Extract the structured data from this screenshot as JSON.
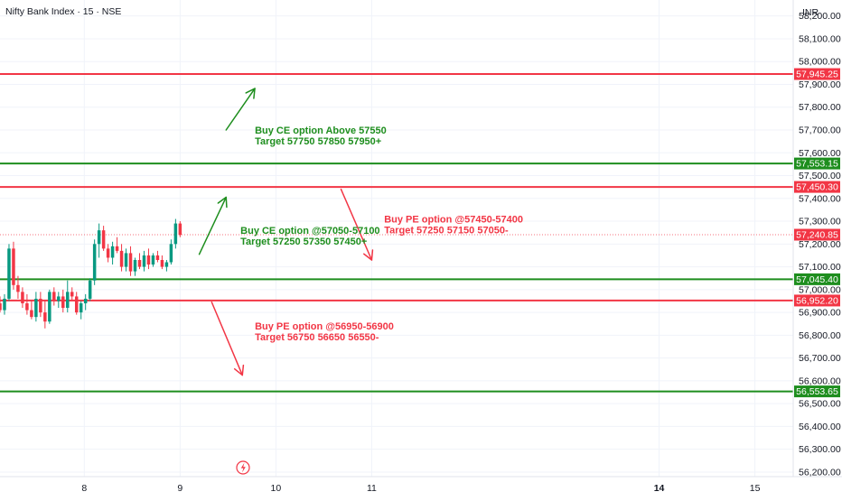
{
  "header": {
    "symbol": "Nifty Bank Index · 15 · NSE",
    "currency": "INR"
  },
  "chart_data": {
    "type": "candlestick",
    "y_axis": {
      "min": 56180,
      "max": 58270,
      "ticks": [
        56200,
        56300,
        56400,
        56500,
        56600,
        56700,
        56800,
        56900,
        57000,
        57100,
        57200,
        57300,
        57400,
        57500,
        57600,
        57700,
        57800,
        57900,
        58000,
        58100,
        58200
      ],
      "tick_labels": [
        "56,200.00",
        "56,300.00",
        "56,400.00",
        "56,500.00",
        "56,600.00",
        "56,700.00",
        "56,800.00",
        "56,900.00",
        "57,000.00",
        "57,100.00",
        "57,200.00",
        "57,300.00",
        "57,400.00",
        "57,500.00",
        "57,600.00",
        "57,700.00",
        "57,800.00",
        "57,900.00",
        "58,000.00",
        "58,100.00",
        "58,200.00"
      ]
    },
    "x_axis": {
      "min": 7.12,
      "max": 15.4,
      "ticks": [
        {
          "value": 8,
          "label": "8",
          "bold": false
        },
        {
          "value": 9,
          "label": "9",
          "bold": false
        },
        {
          "value": 10,
          "label": "10",
          "bold": false
        },
        {
          "value": 11,
          "label": "11",
          "bold": false
        },
        {
          "value": 14,
          "label": "14",
          "bold": true
        },
        {
          "value": 15,
          "label": "15",
          "bold": false
        }
      ]
    },
    "last_price": {
      "value": 57240.85,
      "label": "57,240.85"
    },
    "levels": [
      {
        "price": 57945.25,
        "label": "57,945.25",
        "color": "#f23645"
      },
      {
        "price": 57553.15,
        "label": "57,553.15",
        "color": "#1e8e1e"
      },
      {
        "price": 57450.3,
        "label": "57,450.30",
        "color": "#f23645"
      },
      {
        "price": 57045.4,
        "label": "57,045.40",
        "color": "#1e8e1e"
      },
      {
        "price": 56952.2,
        "label": "56,952.20",
        "color": "#f23645"
      },
      {
        "price": 56553.65,
        "label": "56,553.65",
        "color": "#1e8e1e"
      }
    ],
    "candles": [
      [
        56940,
        56970,
        56900,
        56910
      ],
      [
        56910,
        56980,
        56890,
        56960
      ],
      [
        56960,
        57200,
        56950,
        57180
      ],
      [
        57180,
        57210,
        57000,
        57020
      ],
      [
        57020,
        57060,
        56960,
        56990
      ],
      [
        56990,
        57010,
        56920,
        56940
      ],
      [
        56940,
        56980,
        56890,
        56910
      ],
      [
        56910,
        56950,
        56870,
        56880
      ],
      [
        56880,
        56990,
        56860,
        56960
      ],
      [
        56960,
        56990,
        56880,
        56900
      ],
      [
        56900,
        56950,
        56830,
        56860
      ],
      [
        56860,
        57000,
        56850,
        56990
      ],
      [
        56990,
        57010,
        56930,
        56950
      ],
      [
        56950,
        56990,
        56920,
        56970
      ],
      [
        56970,
        57000,
        56900,
        56920
      ],
      [
        56920,
        57040,
        56900,
        56990
      ],
      [
        56990,
        57010,
        56950,
        56970
      ],
      [
        56970,
        56990,
        56890,
        56900
      ],
      [
        56900,
        56950,
        56870,
        56940
      ],
      [
        56940,
        56980,
        56910,
        56960
      ],
      [
        56960,
        57050,
        56950,
        57040
      ],
      [
        57040,
        57220,
        57020,
        57200
      ],
      [
        57200,
        57290,
        57140,
        57260
      ],
      [
        57260,
        57280,
        57170,
        57180
      ],
      [
        57180,
        57200,
        57120,
        57140
      ],
      [
        57140,
        57210,
        57110,
        57190
      ],
      [
        57190,
        57230,
        57160,
        57170
      ],
      [
        57170,
        57200,
        57080,
        57100
      ],
      [
        57100,
        57180,
        57080,
        57160
      ],
      [
        57160,
        57190,
        57060,
        57080
      ],
      [
        57080,
        57140,
        57060,
        57130
      ],
      [
        57130,
        57160,
        57090,
        57100
      ],
      [
        57100,
        57170,
        57080,
        57150
      ],
      [
        57150,
        57180,
        57090,
        57110
      ],
      [
        57110,
        57160,
        57100,
        57150
      ],
      [
        57150,
        57170,
        57120,
        57130
      ],
      [
        57130,
        57150,
        57090,
        57100
      ],
      [
        57100,
        57130,
        57080,
        57120
      ],
      [
        57120,
        57220,
        57110,
        57200
      ],
      [
        57200,
        57310,
        57180,
        57290
      ],
      [
        57290,
        57300,
        57230,
        57240
      ]
    ],
    "annotations": [
      {
        "lines": [
          "Buy CE option Above 57550",
          "Target 57750 57850 57950+"
        ],
        "color": "#1e8e1e",
        "x": 9.78,
        "price": 57685
      },
      {
        "lines": [
          "Buy CE option @57050-57100",
          "Target 57250 57350 57450+"
        ],
        "color": "#1e8e1e",
        "x": 9.63,
        "price": 57245
      },
      {
        "lines": [
          "Buy PE option @57450-57400",
          "Target 57250 57150 57050-"
        ],
        "color": "#f23645",
        "x": 11.13,
        "price": 57295
      },
      {
        "lines": [
          "Buy PE option @56950-56900",
          "Target 56750 56650 56550-"
        ],
        "color": "#f23645",
        "x": 9.78,
        "price": 56825
      }
    ],
    "arrows": [
      {
        "from": [
          9.48,
          57700
        ],
        "to": [
          9.78,
          57882
        ],
        "color": "#1e8e1e"
      },
      {
        "from": [
          9.2,
          57155
        ],
        "to": [
          9.48,
          57405
        ],
        "color": "#1e8e1e"
      },
      {
        "from": [
          10.68,
          57440
        ],
        "to": [
          11.0,
          57130
        ],
        "color": "#f23645"
      },
      {
        "from": [
          9.33,
          56945
        ],
        "to": [
          9.65,
          56625
        ],
        "color": "#f23645"
      }
    ]
  }
}
